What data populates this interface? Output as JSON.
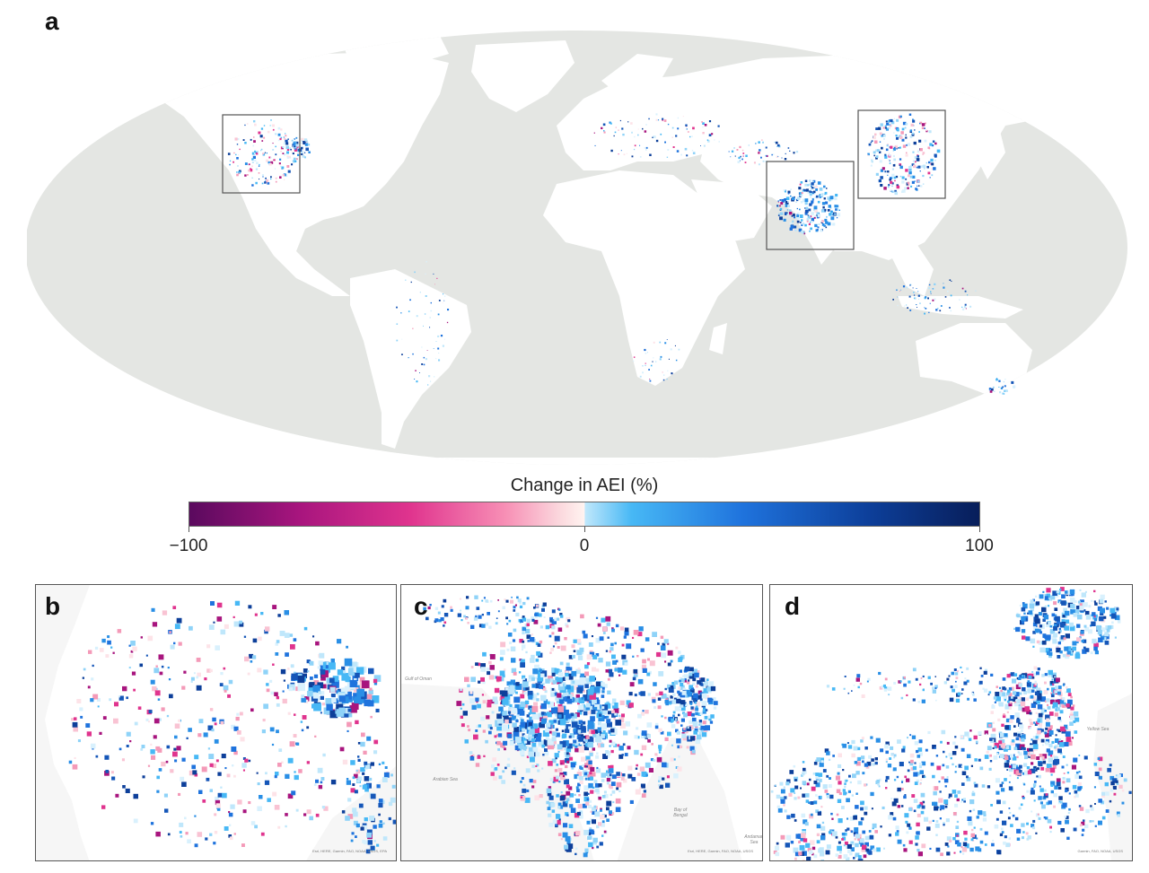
{
  "panels": {
    "a": "a",
    "b": "b",
    "c": "c",
    "d": "d"
  },
  "colorbar": {
    "title": "Change in AEI (%)",
    "min_label": "−100",
    "mid_label": "0",
    "max_label": "100",
    "min_value": -100,
    "mid_value": 0,
    "max_value": 100
  },
  "colors": {
    "ocean": "#e4e6e3",
    "land": "#ffffff",
    "neg_strong": "#5a0a5e",
    "neg_mid": "#e0348e",
    "neg_light": "#f9c3d3",
    "pos_light": "#bfe7fb",
    "pos_mid": "#1f73dd",
    "pos_strong": "#081e5a",
    "box": "#555555"
  },
  "inset_c_labels": {
    "arabian_sea": "Arabian Sea",
    "bay_of_bengal": "Bay of Bengal",
    "gulf_of_oman": "Gulf of Oman",
    "andaman_sea": "Andaman Sea"
  },
  "inset_d_labels": {
    "yellow_sea": "Yellow Sea"
  },
  "credits": {
    "b": "Esri, HERE, Garmin, FAO, NOAA, USGS, EPA",
    "c": "Esri, HERE, Garmin, FAO, NOAA, USGS",
    "d": "Garmin, FAO, NOAA, USGS"
  }
}
